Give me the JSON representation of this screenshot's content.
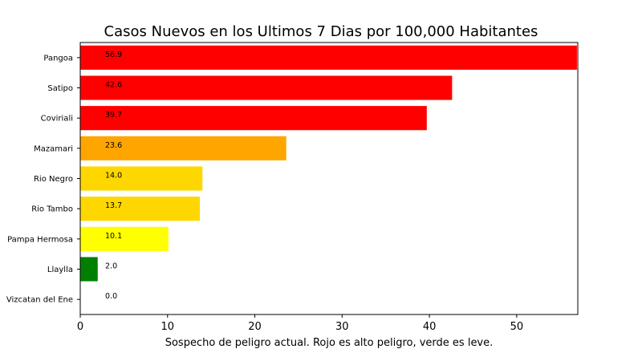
{
  "chart_data": {
    "type": "bar",
    "orientation": "horizontal",
    "title": "Casos Nuevos en los Ultimos 7 Dias por 100,000 Habitantes",
    "xlabel": "Sospecho de peligro actual. Rojo es alto peligro, verde es leve.",
    "ylabel": "",
    "xlim": [
      0,
      57
    ],
    "xticks": [
      0,
      10,
      20,
      30,
      40,
      50
    ],
    "grid": false,
    "legend": "none",
    "categories": [
      "Pangoa",
      "Satipo",
      "Coviriali",
      "Mazamari",
      "Rio Negro",
      "Rio Tambo",
      "Pampa Hermosa",
      "Llaylla",
      "Vizcatan del Ene"
    ],
    "values": [
      56.9,
      42.6,
      39.7,
      23.6,
      14.0,
      13.7,
      10.1,
      2.0,
      0.0
    ],
    "value_labels": [
      "56.9",
      "42.6",
      "39.7",
      "23.6",
      "14.0",
      "13.7",
      "10.1",
      "2.0",
      "0.0"
    ],
    "colors": [
      "#ff0000",
      "#ff0000",
      "#ff0000",
      "#ffa500",
      "#ffd700",
      "#ffd700",
      "#ffff00",
      "#008000",
      "#008000"
    ]
  }
}
